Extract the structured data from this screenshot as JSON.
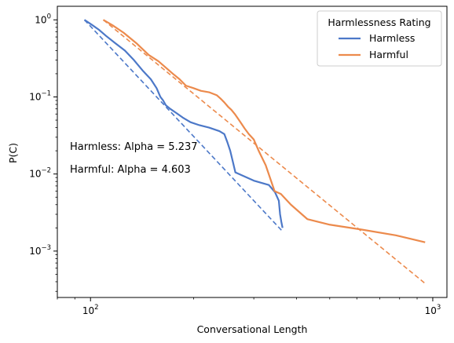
{
  "chart_data": {
    "type": "line",
    "xlabel": "Conversational Length",
    "ylabel": "P(C)",
    "xscale": "log",
    "yscale": "log",
    "xlim": [
      80,
      1100
    ],
    "ylim": [
      0.00025,
      1.5
    ],
    "xticks": [
      {
        "value": 100,
        "base": "10",
        "exp": "2"
      },
      {
        "value": 1000,
        "base": "10",
        "exp": "3"
      }
    ],
    "yticks": [
      {
        "value": 1,
        "base": "10",
        "exp": "0"
      },
      {
        "value": 0.1,
        "base": "10",
        "exp": "−1"
      },
      {
        "value": 0.01,
        "base": "10",
        "exp": "−2"
      },
      {
        "value": 0.001,
        "base": "10",
        "exp": "−3"
      }
    ],
    "legend": {
      "title": "Harmlessness Rating",
      "placement": "top-right"
    },
    "annotations": [
      "Harmless: Alpha = 5.237",
      "Harmful: Alpha = 4.603"
    ],
    "series": [
      {
        "name": "Harmless",
        "color": "#4c78c8",
        "x": [
          96,
          101,
          106,
          111,
          118,
          126,
          134,
          142,
          150,
          156,
          160,
          163,
          166,
          171,
          178,
          186,
          196,
          208,
          222,
          238,
          246,
          251,
          256,
          261,
          265,
          300,
          332,
          346,
          355,
          358,
          361,
          364
        ],
        "y": [
          1.0,
          0.86,
          0.74,
          0.62,
          0.5,
          0.4,
          0.3,
          0.22,
          0.17,
          0.13,
          0.1,
          0.09,
          0.078,
          0.07,
          0.062,
          0.054,
          0.047,
          0.043,
          0.04,
          0.036,
          0.033,
          0.026,
          0.02,
          0.014,
          0.0105,
          0.0082,
          0.0072,
          0.0058,
          0.0045,
          0.003,
          0.0024,
          0.002
        ]
      },
      {
        "name": "Harmful",
        "color": "#ec8a4c",
        "x": [
          109,
          116,
          125,
          136,
          148,
          158,
          166,
          174,
          182,
          190,
          200,
          210,
          222,
          234,
          240,
          246,
          252,
          258,
          264,
          270,
          276,
          282,
          290,
          300,
          310,
          325,
          345,
          360,
          385,
          430,
          500,
          620,
          780,
          950
        ],
        "y": [
          1.0,
          0.85,
          0.68,
          0.5,
          0.35,
          0.29,
          0.24,
          0.2,
          0.17,
          0.14,
          0.13,
          0.12,
          0.115,
          0.105,
          0.095,
          0.085,
          0.075,
          0.068,
          0.06,
          0.052,
          0.045,
          0.039,
          0.033,
          0.028,
          0.02,
          0.013,
          0.006,
          0.0055,
          0.004,
          0.0026,
          0.0022,
          0.0019,
          0.0016,
          0.0013
        ]
      }
    ],
    "fits": [
      {
        "series": "Harmless",
        "color": "#4c78c8",
        "x": [
          96,
          364
        ],
        "y": [
          1.0,
          0.0018
        ]
      },
      {
        "series": "Harmful",
        "color": "#ec8a4c",
        "x": [
          109,
          950
        ],
        "y": [
          1.0,
          0.00038
        ]
      }
    ]
  }
}
